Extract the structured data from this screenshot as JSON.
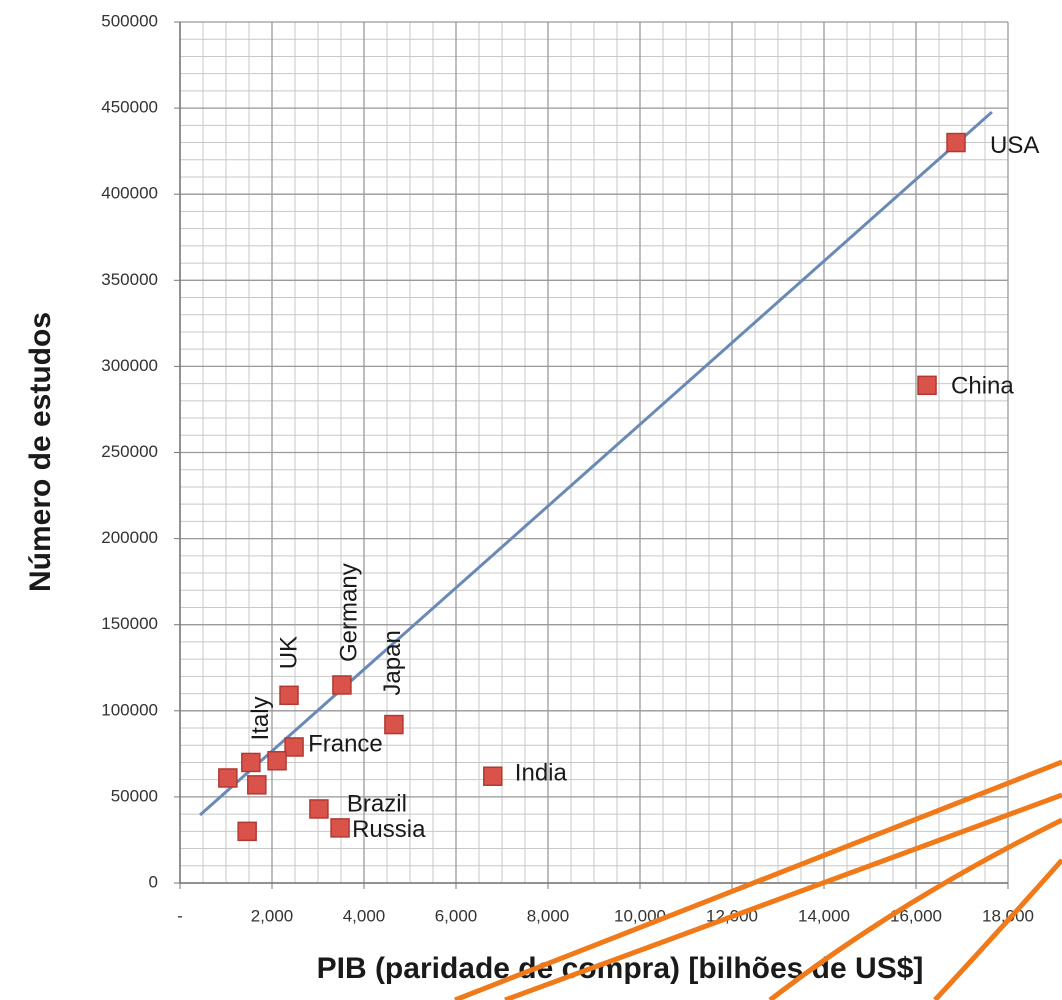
{
  "chart_data": {
    "type": "scatter",
    "x_label": "PIB (paridade de compra) [bilhões de US$]",
    "y_label": "Número de estudos",
    "x": [
      16870,
      16240,
      6800,
      4650,
      3520,
      2370,
      1540,
      2480,
      3020,
      3480,
      1040,
      1460,
      1670,
      2110
    ],
    "values": [
      430000,
      289000,
      62000,
      92000,
      115000,
      109000,
      70000,
      79000,
      43000,
      32000,
      61000,
      30000,
      57000,
      71000
    ],
    "labels": [
      "USA",
      "China",
      "India",
      "Japan",
      "Germany",
      "UK",
      "Italy",
      "France",
      "Brazil",
      "Russia",
      null,
      null,
      null,
      null
    ],
    "color": "#d9534a",
    "trendline": {
      "x": [
        435,
        17650
      ],
      "y": [
        39500,
        447700
      ],
      "color": "#6a8ab5"
    },
    "xlim": [
      0,
      18000
    ],
    "xticks": [
      {
        "value": 0,
        "label": "-"
      },
      {
        "value": 2000,
        "label": "2,000"
      },
      {
        "value": 4000,
        "label": "4,000"
      },
      {
        "value": 6000,
        "label": "6,000"
      },
      {
        "value": 8000,
        "label": "8,000"
      },
      {
        "value": 10000,
        "label": "10,000"
      },
      {
        "value": 12000,
        "label": "12,000"
      },
      {
        "value": 14000,
        "label": "14,000"
      },
      {
        "value": 16000,
        "label": "16,000"
      },
      {
        "value": 18000,
        "label": "18,000"
      }
    ],
    "ylim": [
      0,
      500000
    ],
    "yticks": [
      0,
      50000,
      100000,
      150000,
      200000,
      250000,
      300000,
      350000,
      400000,
      450000,
      500000
    ],
    "grid": true
  }
}
